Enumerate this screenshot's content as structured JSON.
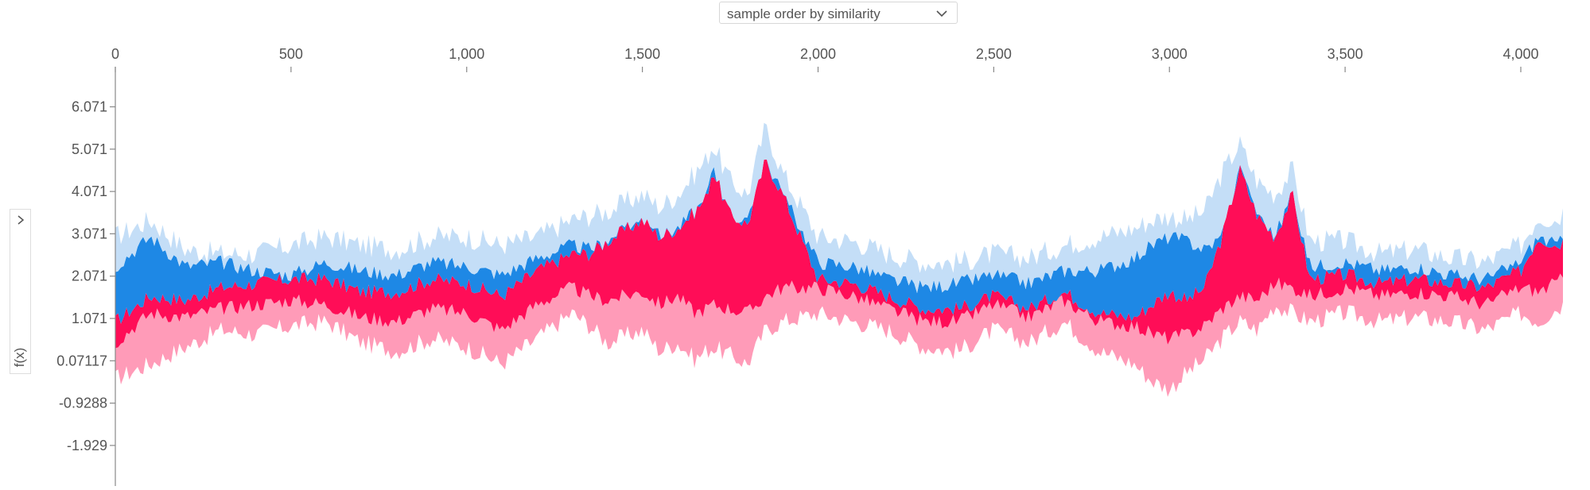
{
  "controls": {
    "order_select_value": "sample order by similarity",
    "order_select_icon": "chevron-down-icon",
    "side_toggle_icon": "chevron-right-icon"
  },
  "colors": {
    "positive_dark": "#ff0d57",
    "positive_light": "#ff9bb8",
    "negative_dark": "#1e88e5",
    "negative_light": "#c4def7",
    "axis": "#888888",
    "text": "#555555"
  },
  "chart_data": {
    "type": "area",
    "ylabel": "f(x)",
    "xlim": [
      0,
      4120
    ],
    "ylim": [
      -2.9,
      7.0
    ],
    "x_ticks": [
      0,
      500,
      1000,
      1500,
      2000,
      2500,
      3000,
      3500,
      4000
    ],
    "x_tick_labels": [
      "0",
      "500",
      "1,000",
      "1,500",
      "2,000",
      "2,500",
      "3,000",
      "3,500",
      "4,000"
    ],
    "y_ticks": [
      6.071,
      5.071,
      4.071,
      3.071,
      2.071,
      1.071,
      0.07117,
      -0.9288,
      -1.929
    ],
    "y_tick_labels": [
      "6.071",
      "5.071",
      "4.071",
      "3.071",
      "2.071",
      "1.071",
      "0.07117",
      "-0.9288",
      "-1.929"
    ],
    "grid": false,
    "legend": "none",
    "x": [
      0,
      100,
      200,
      300,
      400,
      500,
      600,
      700,
      800,
      900,
      1000,
      1100,
      1200,
      1300,
      1350,
      1400,
      1500,
      1550,
      1600,
      1650,
      1680,
      1700,
      1750,
      1800,
      1850,
      1900,
      2000,
      2100,
      2200,
      2300,
      2400,
      2500,
      2600,
      2700,
      2800,
      2900,
      2950,
      3000,
      3050,
      3100,
      3150,
      3200,
      3250,
      3300,
      3350,
      3400,
      3500,
      3600,
      3700,
      3800,
      3900,
      4000,
      4050,
      4100,
      4120
    ],
    "series": [
      {
        "values": [
          -0.35,
          0.0,
          0.4,
          0.8,
          0.7,
          0.9,
          1.0,
          0.5,
          0.3,
          0.6,
          0.4,
          0.0,
          0.6,
          1.2,
          0.9,
          0.5,
          0.8,
          0.3,
          0.5,
          0.1,
          0.3,
          0.4,
          0.2,
          0.0,
          0.8,
          1.0,
          1.2,
          1.0,
          0.8,
          0.4,
          0.3,
          0.8,
          0.5,
          1.0,
          0.3,
          0.0,
          -0.4,
          -0.6,
          -0.2,
          0.1,
          0.6,
          1.0,
          0.8,
          1.4,
          1.2,
          1.0,
          1.2,
          1.0,
          1.1,
          1.0,
          0.8,
          1.2,
          1.0,
          1.3,
          1.4
        ]
      },
      {
        "values": [
          0.5,
          1.2,
          1.1,
          1.3,
          1.4,
          1.5,
          1.4,
          1.1,
          1.0,
          1.3,
          1.2,
          0.8,
          1.4,
          1.8,
          1.6,
          1.5,
          1.7,
          1.4,
          1.6,
          1.2,
          1.3,
          1.4,
          1.3,
          1.2,
          1.6,
          1.8,
          1.8,
          1.6,
          1.3,
          1.0,
          1.0,
          1.4,
          1.1,
          1.5,
          1.0,
          0.9,
          0.7,
          0.6,
          0.7,
          0.9,
          1.3,
          1.6,
          1.5,
          1.9,
          1.8,
          1.6,
          1.8,
          1.6,
          1.7,
          1.6,
          1.4,
          1.8,
          1.7,
          1.9,
          2.0
        ]
      },
      {
        "values": [
          1.0,
          1.6,
          1.5,
          1.8,
          1.9,
          2.0,
          2.0,
          1.7,
          1.7,
          2.0,
          1.9,
          1.6,
          2.2,
          2.6,
          2.6,
          2.9,
          3.4,
          3.0,
          3.2,
          3.6,
          3.9,
          4.6,
          3.5,
          3.3,
          4.8,
          4.0,
          2.0,
          1.9,
          1.6,
          1.3,
          1.3,
          1.6,
          1.3,
          1.7,
          1.2,
          1.1,
          1.4,
          1.7,
          1.5,
          1.8,
          3.0,
          4.6,
          3.5,
          3.0,
          4.0,
          2.0,
          2.1,
          1.9,
          2.0,
          1.9,
          1.8,
          2.2,
          3.0,
          2.8,
          2.9
        ]
      },
      {
        "values": [
          2.3,
          3.0,
          2.3,
          2.4,
          2.2,
          2.1,
          2.4,
          2.2,
          2.1,
          2.4,
          2.3,
          2.1,
          2.5,
          2.8,
          2.7,
          2.9,
          3.4,
          3.0,
          3.2,
          3.6,
          3.9,
          4.6,
          3.5,
          3.3,
          4.8,
          4.0,
          2.4,
          2.3,
          2.0,
          1.8,
          1.9,
          2.1,
          1.9,
          2.2,
          2.2,
          2.5,
          2.8,
          3.0,
          2.9,
          2.7,
          3.0,
          4.6,
          3.5,
          3.0,
          4.0,
          2.3,
          2.4,
          2.2,
          2.3,
          2.1,
          2.0,
          2.4,
          3.0,
          2.8,
          2.9
        ]
      },
      {
        "values": [
          3.0,
          3.4,
          2.7,
          2.6,
          2.6,
          2.8,
          3.0,
          2.8,
          2.7,
          3.0,
          3.0,
          2.8,
          3.0,
          3.4,
          3.5,
          3.6,
          4.0,
          3.7,
          4.0,
          4.5,
          4.8,
          5.2,
          4.3,
          4.0,
          5.6,
          4.5,
          3.0,
          2.9,
          2.6,
          2.4,
          2.4,
          2.6,
          2.5,
          2.8,
          3.0,
          3.2,
          3.4,
          3.5,
          3.4,
          3.6,
          4.5,
          5.2,
          4.3,
          4.0,
          4.6,
          2.9,
          2.9,
          2.6,
          2.7,
          2.5,
          2.4,
          2.8,
          3.5,
          3.4,
          3.6
        ]
      }
    ],
    "series_roles": [
      "floor",
      "positive-low",
      "positive-high",
      "negative-low",
      "negative-high"
    ]
  }
}
